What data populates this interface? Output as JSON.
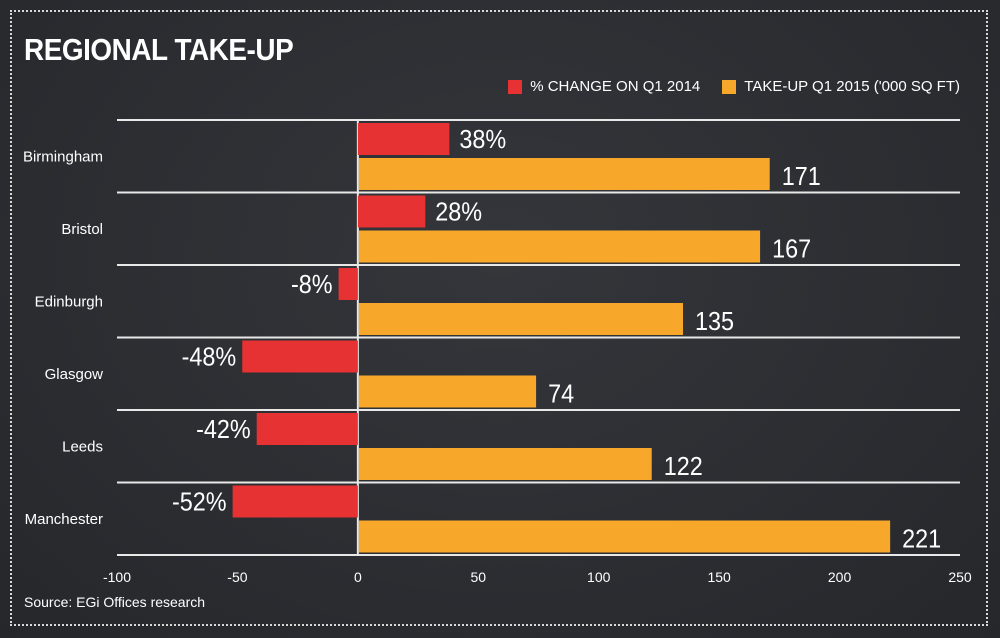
{
  "title": "REGIONAL TAKE-UP",
  "source": "Source: EGi Offices research",
  "colors": {
    "change": "#e63232",
    "takeup": "#f7a82b",
    "grid": "#e8e8e8",
    "background": "#2b2d31"
  },
  "chart_data": {
    "type": "bar",
    "orientation": "horizontal",
    "categories": [
      "Birmingham",
      "Bristol",
      "Edinburgh",
      "Glasgow",
      "Leeds",
      "Manchester"
    ],
    "series": [
      {
        "name": "% CHANGE ON Q1 2014",
        "values": [
          38,
          28,
          -8,
          -48,
          -42,
          -52
        ],
        "labels": [
          "38%",
          "28%",
          "-8%",
          "-48%",
          "-42%",
          "-52%"
        ]
      },
      {
        "name": "TAKE-UP Q1 2015 ('000 SQ FT)",
        "values": [
          171,
          167,
          135,
          74,
          122,
          221
        ],
        "labels": [
          "171",
          "167",
          "135",
          "74",
          "122",
          "221"
        ]
      }
    ],
    "xlim": [
      -100,
      250
    ],
    "xticks": [
      "-100",
      "-50",
      "0",
      "50",
      "100",
      "150",
      "200",
      "250"
    ],
    "grid": true,
    "legend": "top-right"
  }
}
